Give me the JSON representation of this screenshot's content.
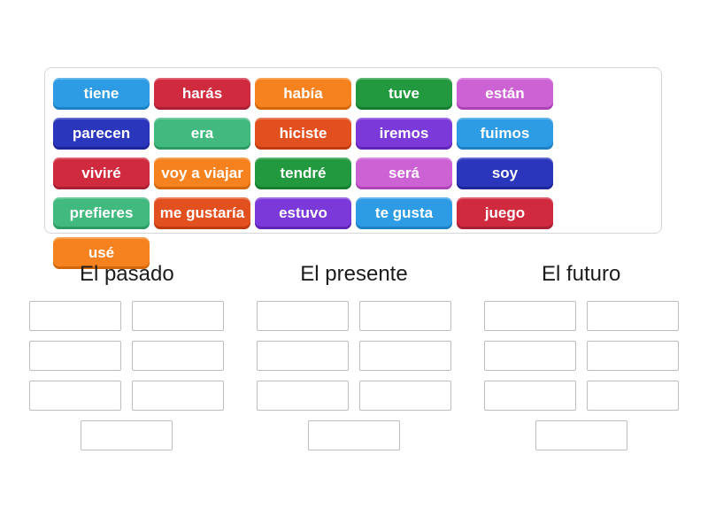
{
  "activity": {
    "kind": "group-sort",
    "palette": {
      "blue": {
        "bg": "#2e9ce5",
        "edge": "#1d7fc4"
      },
      "red": {
        "bg": "#d02a3f",
        "edge": "#a91f33"
      },
      "orange": {
        "bg": "#f5821f",
        "edge": "#d3670b"
      },
      "green": {
        "bg": "#23993f",
        "edge": "#157c2e"
      },
      "orchid": {
        "bg": "#cd62d5",
        "edge": "#ab43b4"
      },
      "navy": {
        "bg": "#2a37bd",
        "edge": "#1c2699"
      },
      "seagreen": {
        "bg": "#42b97e",
        "edge": "#2c9a62"
      },
      "orangered": {
        "bg": "#e35020",
        "edge": "#c03a10"
      },
      "purple": {
        "bg": "#7b39da",
        "edge": "#6124b8"
      }
    },
    "tray": {
      "tiles": [
        {
          "label": "tiene",
          "color": "blue"
        },
        {
          "label": "harás",
          "color": "red"
        },
        {
          "label": "había",
          "color": "orange"
        },
        {
          "label": "tuve",
          "color": "green"
        },
        {
          "label": "están",
          "color": "orchid"
        },
        {
          "label": "parecen",
          "color": "navy"
        },
        {
          "label": "era",
          "color": "seagreen"
        },
        {
          "label": "hiciste",
          "color": "orangered"
        },
        {
          "label": "iremos",
          "color": "purple"
        },
        {
          "label": "fuimos",
          "color": "blue"
        },
        {
          "label": "viviré",
          "color": "red"
        },
        {
          "label": "voy a viajar",
          "color": "orange"
        },
        {
          "label": "tendré",
          "color": "green"
        },
        {
          "label": "será",
          "color": "orchid"
        },
        {
          "label": "soy",
          "color": "navy"
        },
        {
          "label": "prefieres",
          "color": "seagreen"
        },
        {
          "label": "me gustaría",
          "color": "orangered"
        },
        {
          "label": "estuvo",
          "color": "purple"
        },
        {
          "label": "te gusta",
          "color": "blue"
        },
        {
          "label": "juego",
          "color": "red"
        },
        {
          "label": "usé",
          "color": "orange"
        }
      ]
    },
    "groups": [
      {
        "title": "El pasado",
        "slot_count": 7
      },
      {
        "title": "El presente",
        "slot_count": 7
      },
      {
        "title": "El futuro",
        "slot_count": 7
      }
    ]
  }
}
